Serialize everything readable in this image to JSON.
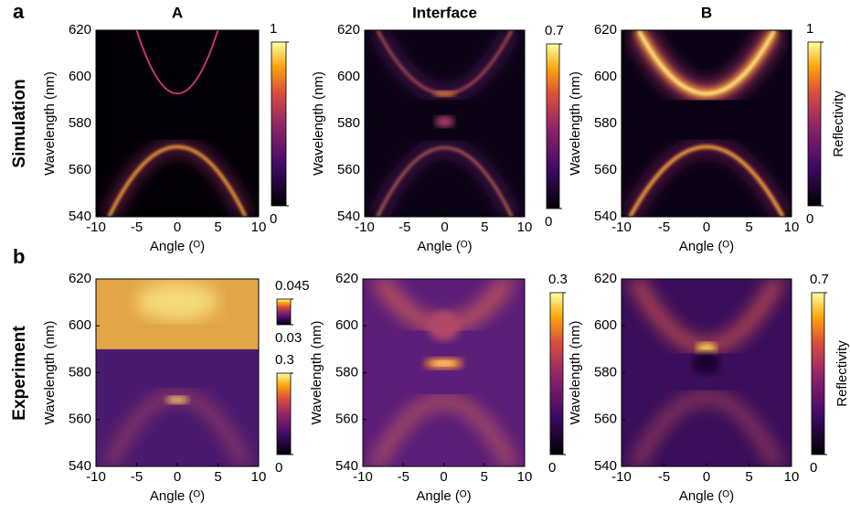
{
  "figure": {
    "panel_labels": [
      "a",
      "b"
    ],
    "row_labels": [
      "Simulation",
      "Experiment"
    ]
  },
  "chart_data": [
    {
      "type": "heatmap",
      "title": "A",
      "xlabel": "Angle (ᴼ)",
      "ylabel": "Wavelength (nm)",
      "xlim": [
        -10,
        10
      ],
      "ylim": [
        540,
        620
      ],
      "xticks": [
        -10,
        -5,
        0,
        5,
        10
      ],
      "yticks": [
        540,
        560,
        580,
        600,
        620
      ],
      "colorbars": [
        {
          "lim": [
            0,
            1
          ],
          "ticks": [
            0,
            1
          ]
        }
      ]
    },
    {
      "type": "heatmap",
      "title": "Interface",
      "xlabel": "Angle (ᴼ)",
      "ylabel": "Wavelength (nm)",
      "xlim": [
        -10,
        10
      ],
      "ylim": [
        540,
        620
      ],
      "xticks": [
        -10,
        -5,
        0,
        5,
        10
      ],
      "yticks": [
        540,
        560,
        580,
        600,
        620
      ],
      "colorbars": [
        {
          "lim": [
            0,
            0.7
          ],
          "ticks": [
            0,
            0.7
          ]
        }
      ]
    },
    {
      "type": "heatmap",
      "title": "B",
      "xlabel": "Angle (ᴼ)",
      "ylabel": "Wavelength (nm)",
      "xlim": [
        -10,
        10
      ],
      "ylim": [
        540,
        620
      ],
      "xticks": [
        -10,
        -5,
        0,
        5,
        10
      ],
      "yticks": [
        540,
        560,
        580,
        600,
        620
      ],
      "colorbars": [
        {
          "lim": [
            0,
            1
          ],
          "ticks": [
            0,
            1
          ],
          "label": "Reflectivity"
        }
      ]
    },
    {
      "type": "heatmap",
      "xlabel": "Angle (ᴼ)",
      "ylabel": "Wavelength (nm)",
      "xlim": [
        -10,
        10
      ],
      "ylim": [
        540,
        620
      ],
      "xticks": [
        -10,
        -5,
        0,
        5,
        10
      ],
      "yticks": [
        540,
        560,
        580,
        600,
        620
      ],
      "colorbars": [
        {
          "lim": [
            0.03,
            0.045
          ],
          "ticks": [
            0.03,
            0.045
          ]
        },
        {
          "lim": [
            0,
            0.3
          ],
          "ticks": [
            0,
            0.3
          ]
        }
      ]
    },
    {
      "type": "heatmap",
      "xlabel": "Angle (ᴼ)",
      "ylabel": "Wavelength (nm)",
      "xlim": [
        -10,
        10
      ],
      "ylim": [
        540,
        620
      ],
      "xticks": [
        -10,
        -5,
        0,
        5,
        10
      ],
      "yticks": [
        540,
        560,
        580,
        600,
        620
      ],
      "colorbars": [
        {
          "lim": [
            0,
            0.3
          ],
          "ticks": [
            0,
            0.3
          ]
        }
      ]
    },
    {
      "type": "heatmap",
      "xlabel": "Angle (ᴼ)",
      "ylabel": "Wavelength (nm)",
      "xlim": [
        -10,
        10
      ],
      "ylim": [
        540,
        620
      ],
      "xticks": [
        -10,
        -5,
        0,
        5,
        10
      ],
      "yticks": [
        540,
        560,
        580,
        600,
        620
      ],
      "colorbars": [
        {
          "lim": [
            0,
            0.7
          ],
          "ticks": [
            0,
            0.7
          ],
          "label": "Reflectivity"
        }
      ]
    }
  ]
}
